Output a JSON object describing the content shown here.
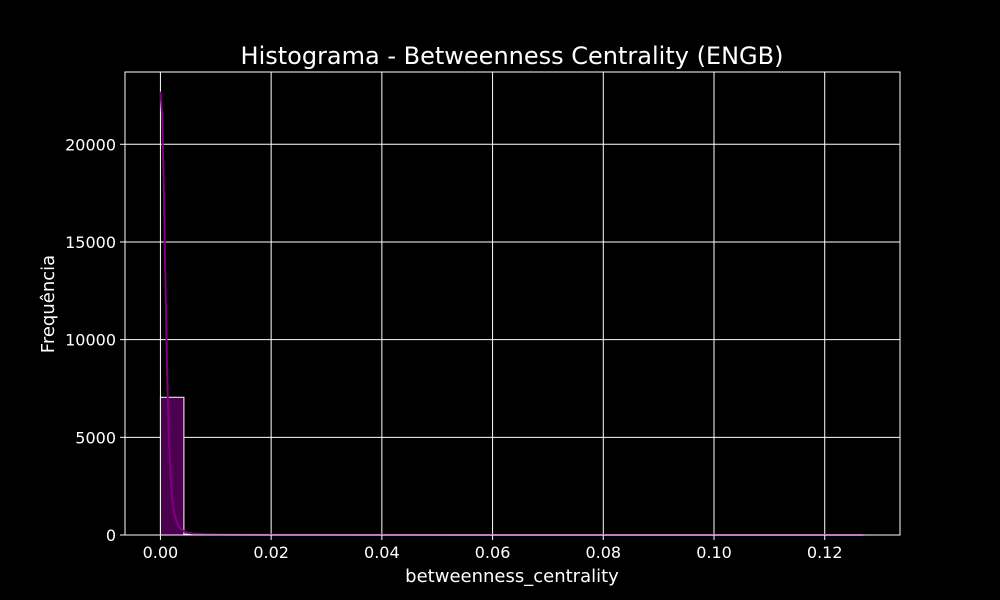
{
  "chart_data": {
    "type": "bar",
    "title": "Histograma - Betweenness Centrality (ENGB)",
    "xlabel": "betweenness_centrality",
    "ylabel": "Frequência",
    "xlim": [
      -0.0064,
      0.1336
    ],
    "ylim": [
      0,
      23700
    ],
    "xticks": [
      0.0,
      0.02,
      0.04,
      0.06,
      0.08,
      0.1,
      0.12
    ],
    "xtick_labels": [
      "0.00",
      "0.02",
      "0.04",
      "0.06",
      "0.08",
      "0.10",
      "0.12"
    ],
    "yticks": [
      0,
      5000,
      10000,
      15000,
      20000
    ],
    "ytick_labels": [
      "0",
      "5000",
      "10000",
      "15000",
      "20000"
    ],
    "grid": true,
    "bin_width": 0.00424,
    "bins": [
      {
        "x0": 0.0,
        "x1": 0.00424,
        "value": 7050
      },
      {
        "x0": 0.00424,
        "x1": 0.00848,
        "value": 45
      },
      {
        "x0": 0.00848,
        "x1": 0.01272,
        "value": 10
      },
      {
        "x0": 0.01272,
        "x1": 0.01696,
        "value": 5
      },
      {
        "x0": 0.01696,
        "x1": 0.0212,
        "value": 3
      },
      {
        "x0": 0.0212,
        "x1": 0.02544,
        "value": 2
      },
      {
        "x0": 0.02544,
        "x1": 0.02968,
        "value": 1
      },
      {
        "x0": 0.02968,
        "x1": 0.03392,
        "value": 1
      },
      {
        "x0": 0.03392,
        "x1": 0.03816,
        "value": 1
      },
      {
        "x0": 0.1229,
        "x1": 0.12714,
        "value": 1
      }
    ],
    "kde": {
      "x": [
        0.0,
        0.0003,
        0.0006,
        0.0009,
        0.0012,
        0.0015,
        0.0018,
        0.0021,
        0.0025,
        0.003,
        0.0036,
        0.0043,
        0.005,
        0.006,
        0.008,
        0.012,
        0.02,
        0.04,
        0.06,
        0.08,
        0.1,
        0.12,
        0.127
      ],
      "y": [
        22700,
        21500,
        18000,
        13000,
        8500,
        5200,
        3200,
        1900,
        1100,
        600,
        330,
        180,
        110,
        70,
        40,
        20,
        10,
        5,
        3,
        2,
        2,
        2,
        1
      ]
    },
    "colors": {
      "bar_fill": "#4b0050",
      "bar_edge": "#ffffff",
      "kde_line": "#800080",
      "grid": "#ffffff",
      "background": "#000000",
      "text": "#ffffff"
    }
  }
}
